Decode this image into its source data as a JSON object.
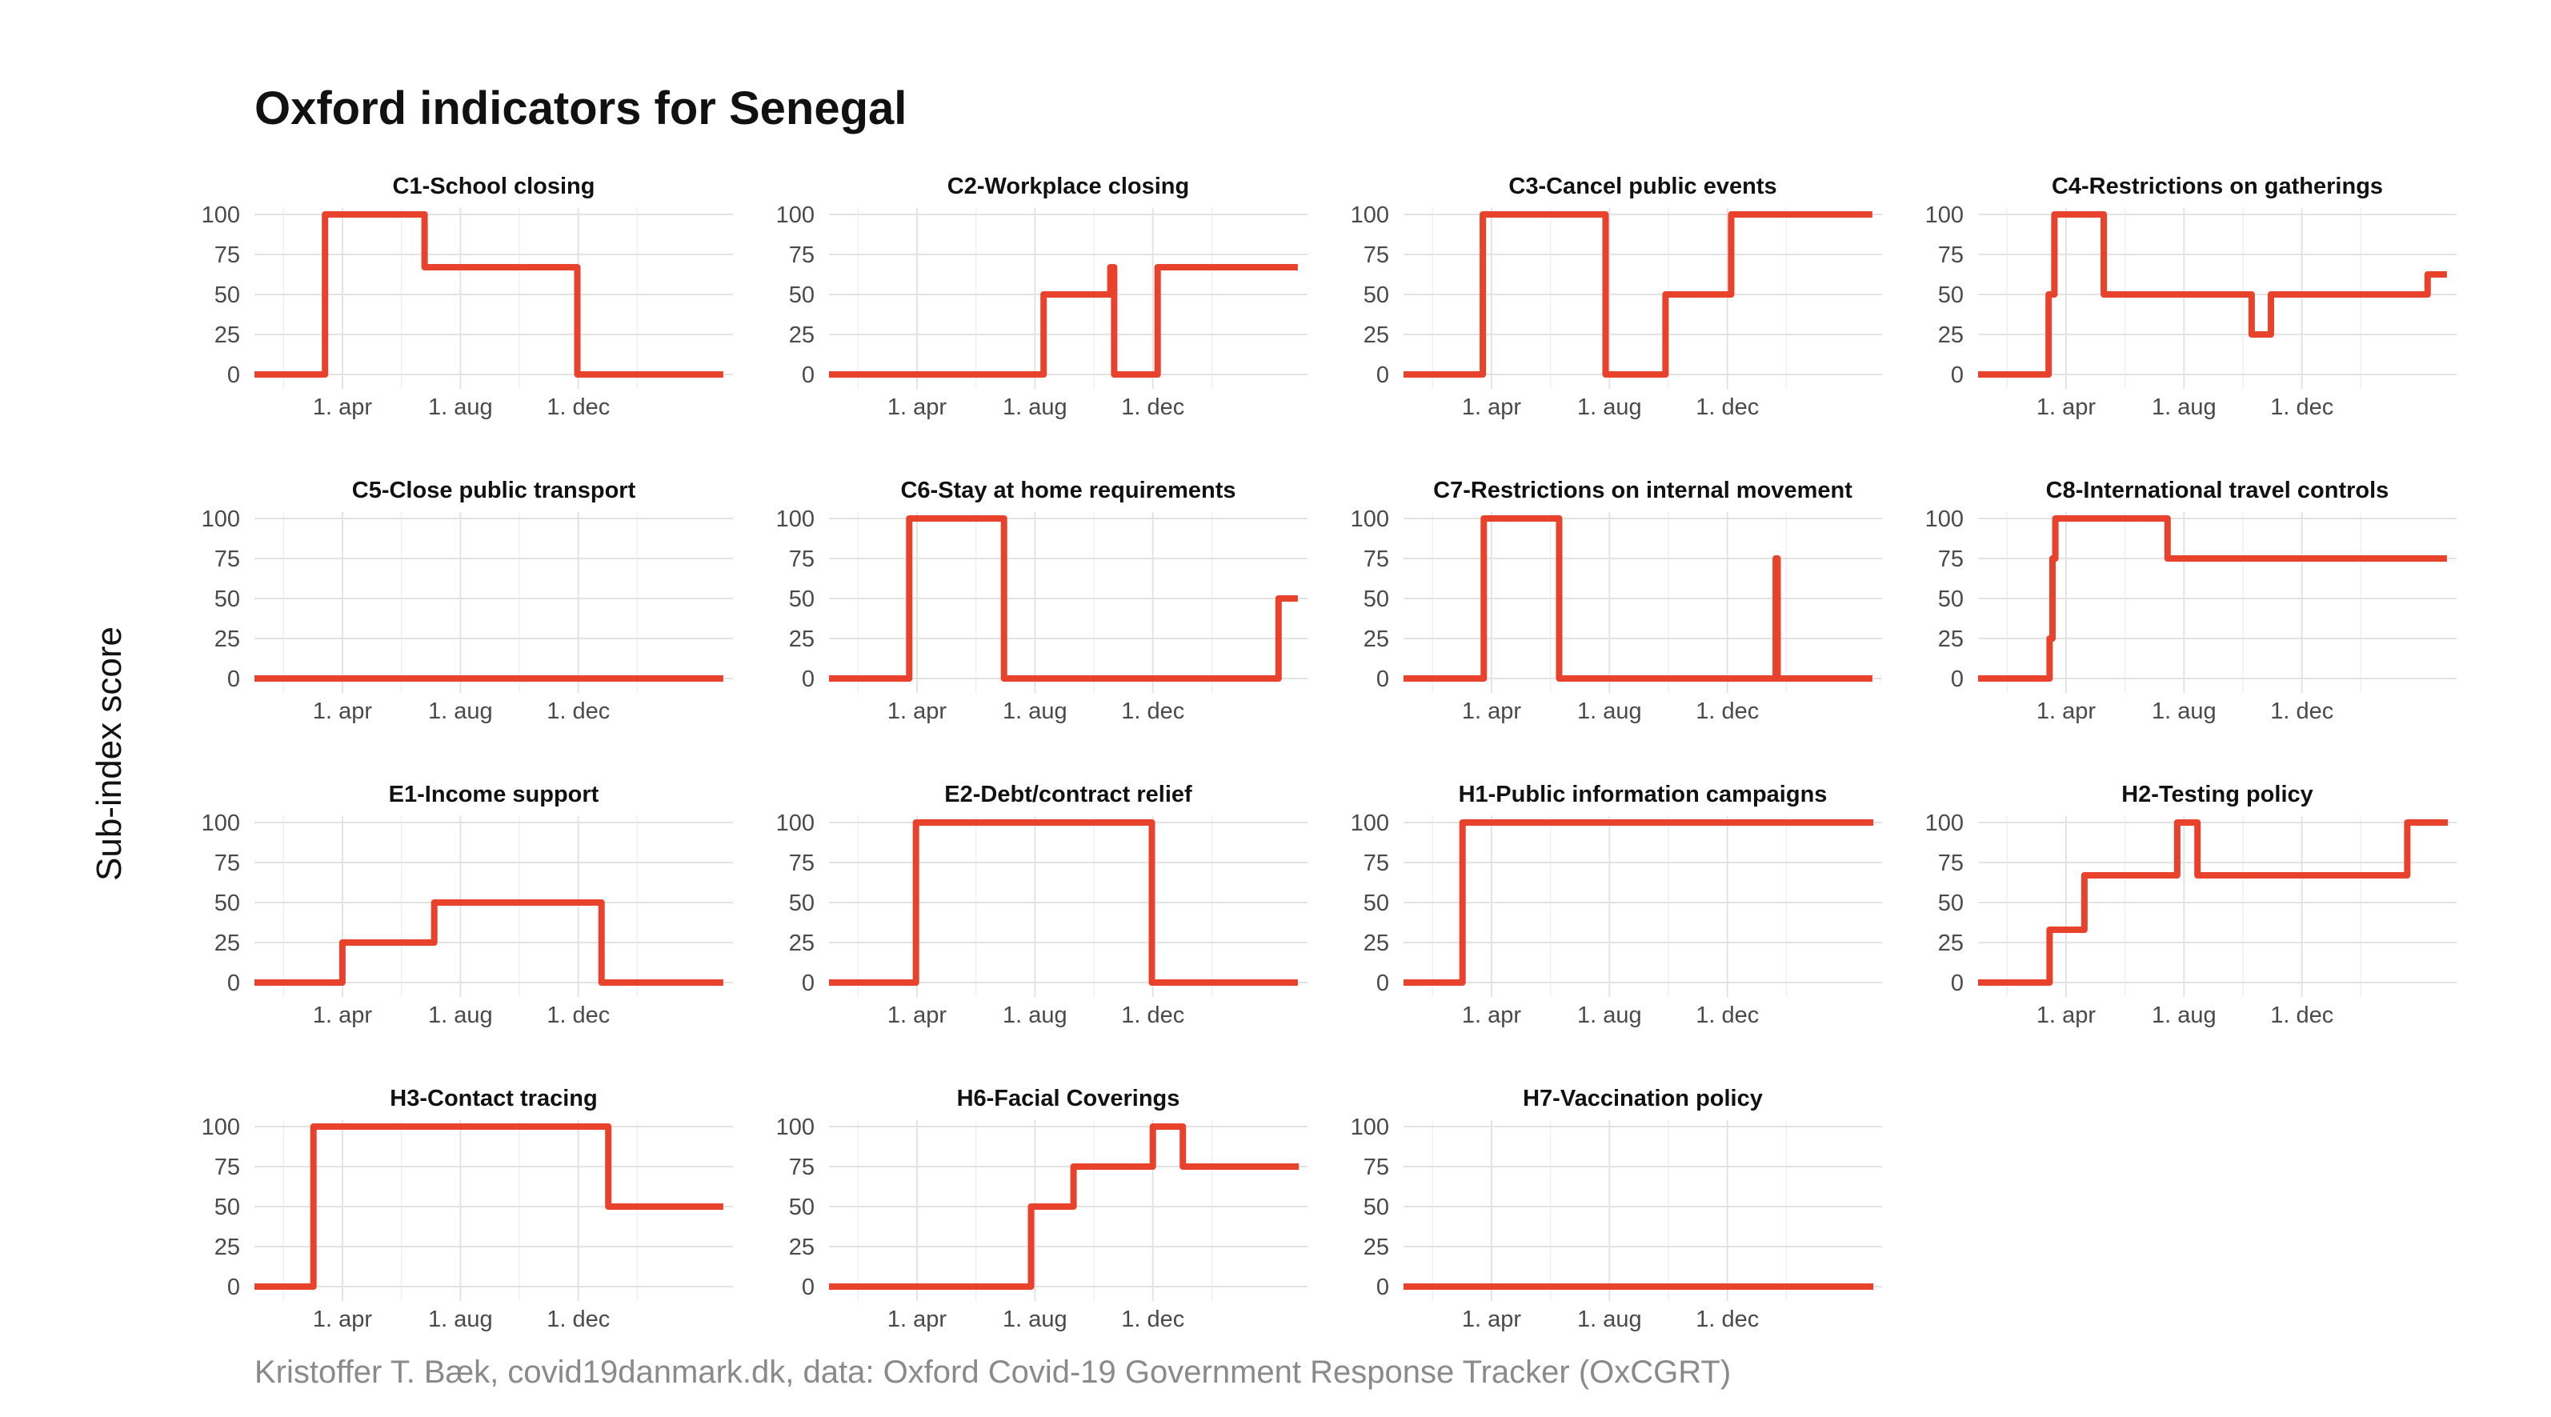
{
  "title": "Oxford indicators for Senegal",
  "ylabel": "Sub-index score",
  "caption": "Kristoffer T. Bæk, covid19danmark.dk, data: Oxford Covid-19 Government Response Tracker (OxCGRT)",
  "chart_data": {
    "type": "line",
    "layout": "facet-grid-4x4",
    "line_color": "#E8412C",
    "grid": true,
    "x_range": [
      "2020-01-01",
      "2021-05-10"
    ],
    "x_ticks": [
      {
        "date": "2020-04-01",
        "label": "1. apr"
      },
      {
        "date": "2020-08-01",
        "label": "1. aug"
      },
      {
        "date": "2020-12-01",
        "label": "1. dec"
      }
    ],
    "y_range": [
      0,
      100
    ],
    "y_ticks": [
      0,
      25,
      50,
      75,
      100
    ],
    "panels": [
      {
        "title": "C1-School closing",
        "x": [
          "2020-01-01",
          "2020-03-14",
          "2020-03-14",
          "2020-06-25",
          "2020-06-25",
          "2020-11-30",
          "2020-11-30",
          "2021-04-30"
        ],
        "y": [
          0,
          0,
          100,
          100,
          67,
          67,
          0,
          0
        ]
      },
      {
        "title": "C2-Workplace closing",
        "x": [
          "2020-01-01",
          "2020-08-10",
          "2020-08-10",
          "2020-10-18",
          "2020-10-18",
          "2020-10-22",
          "2020-10-22",
          "2020-12-06",
          "2020-12-06",
          "2021-04-30"
        ],
        "y": [
          0,
          0,
          50,
          50,
          67,
          67,
          0,
          0,
          67,
          67
        ]
      },
      {
        "title": "C3-Cancel public events",
        "x": [
          "2020-01-01",
          "2020-03-23",
          "2020-03-23",
          "2020-07-28",
          "2020-07-28",
          "2020-09-28",
          "2020-09-28",
          "2020-12-05",
          "2020-12-05",
          "2021-04-30"
        ],
        "y": [
          0,
          0,
          100,
          100,
          0,
          0,
          50,
          50,
          100,
          100
        ]
      },
      {
        "title": "C4-Restrictions on gatherings",
        "x": [
          "2020-01-01",
          "2020-03-14",
          "2020-03-14",
          "2020-03-20",
          "2020-03-20",
          "2020-05-10",
          "2020-05-10",
          "2020-10-10",
          "2020-10-10",
          "2020-10-30",
          "2020-10-30",
          "2021-04-10",
          "2021-04-10",
          "2021-04-30"
        ],
        "y": [
          0,
          0,
          50,
          50,
          100,
          100,
          50,
          50,
          25,
          25,
          50,
          50,
          62.5,
          62.5
        ]
      },
      {
        "title": "C5-Close public transport",
        "x": [
          "2020-01-01",
          "2021-04-30"
        ],
        "y": [
          0,
          0
        ]
      },
      {
        "title": "C6-Stay at home requirements",
        "x": [
          "2020-01-01",
          "2020-03-24",
          "2020-03-24",
          "2020-06-30",
          "2020-06-30",
          "2021-04-10",
          "2021-04-10",
          "2021-04-30"
        ],
        "y": [
          0,
          0,
          100,
          100,
          0,
          0,
          50,
          50
        ]
      },
      {
        "title": "C7-Restrictions on internal movement",
        "x": [
          "2020-01-01",
          "2020-03-24",
          "2020-03-24",
          "2020-06-10",
          "2020-06-10",
          "2021-01-20",
          "2021-01-20",
          "2021-01-22",
          "2021-01-22",
          "2021-01-26",
          "2021-01-26",
          "2021-04-30"
        ],
        "y": [
          0,
          0,
          100,
          100,
          0,
          0,
          75,
          75,
          0,
          0,
          0,
          0
        ]
      },
      {
        "title": "C8-International travel controls",
        "x": [
          "2020-01-01",
          "2020-03-15",
          "2020-03-15",
          "2020-03-18",
          "2020-03-18",
          "2020-03-21",
          "2020-03-21",
          "2020-07-15",
          "2020-07-15",
          "2021-04-30"
        ],
        "y": [
          0,
          0,
          25,
          25,
          75,
          75,
          100,
          100,
          75,
          75
        ]
      },
      {
        "title": "E1-Income support",
        "x": [
          "2020-01-01",
          "2020-04-01",
          "2020-04-01",
          "2020-07-05",
          "2020-07-05",
          "2020-12-25",
          "2020-12-25",
          "2021-04-30"
        ],
        "y": [
          0,
          0,
          25,
          25,
          50,
          50,
          0,
          0
        ]
      },
      {
        "title": "E2-Debt/contract relief",
        "x": [
          "2020-01-01",
          "2020-03-31",
          "2020-03-31",
          "2020-11-30",
          "2020-11-30",
          "2021-04-30"
        ],
        "y": [
          0,
          0,
          100,
          100,
          0,
          0
        ]
      },
      {
        "title": "H1-Public information campaigns",
        "x": [
          "2020-01-01",
          "2020-03-02",
          "2020-03-02",
          "2021-05-01"
        ],
        "y": [
          0,
          0,
          100,
          100
        ]
      },
      {
        "title": "H2-Testing policy",
        "x": [
          "2020-01-01",
          "2020-03-15",
          "2020-03-15",
          "2020-04-20",
          "2020-04-20",
          "2020-07-25",
          "2020-07-25",
          "2020-08-15",
          "2020-08-15",
          "2021-03-20",
          "2021-03-20",
          "2021-05-01"
        ],
        "y": [
          0,
          0,
          33,
          33,
          67,
          67,
          100,
          100,
          67,
          67,
          100,
          100
        ]
      },
      {
        "title": "H3-Contact tracing",
        "x": [
          "2020-01-01",
          "2020-03-02",
          "2020-03-02",
          "2021-01-01",
          "2021-01-01",
          "2021-04-30"
        ],
        "y": [
          0,
          0,
          100,
          100,
          50,
          50
        ]
      },
      {
        "title": "H6-Facial Coverings",
        "x": [
          "2020-01-01",
          "2020-07-28",
          "2020-07-28",
          "2020-09-10",
          "2020-09-10",
          "2020-12-01",
          "2020-12-01",
          "2021-01-01",
          "2021-01-01",
          "2021-05-01"
        ],
        "y": [
          0,
          0,
          50,
          50,
          75,
          75,
          100,
          100,
          75,
          75
        ]
      },
      {
        "title": "H7-Vaccination policy",
        "x": [
          "2020-01-01",
          "2021-05-01"
        ],
        "y": [
          0,
          0
        ]
      }
    ]
  }
}
